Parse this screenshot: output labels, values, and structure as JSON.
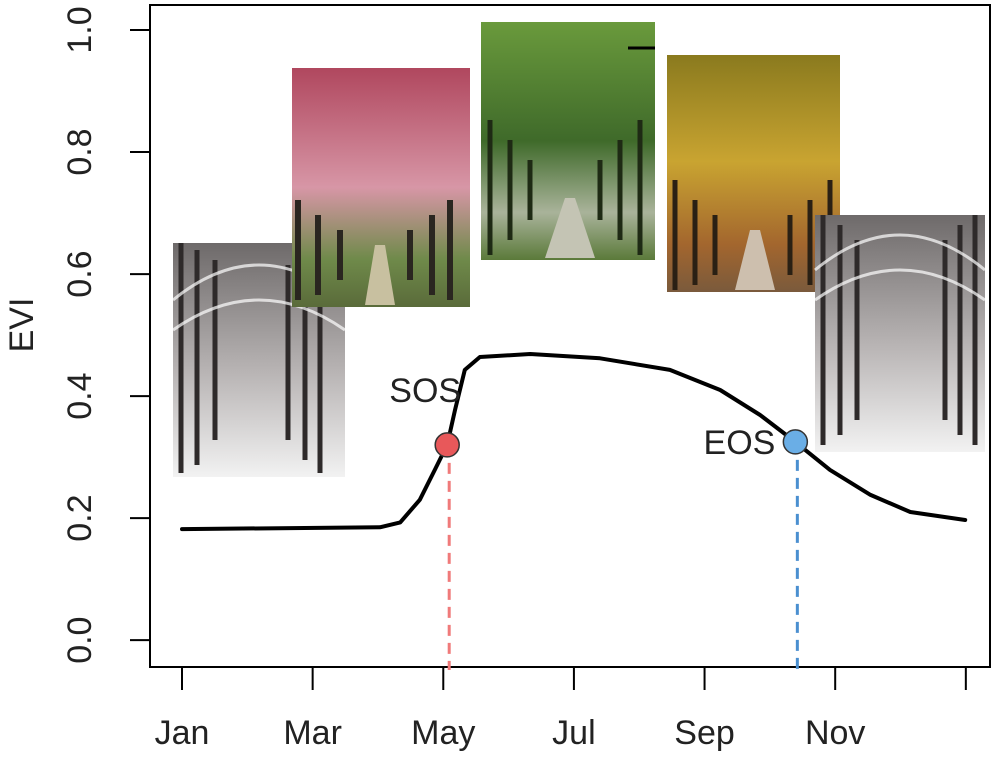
{
  "chart_data": {
    "type": "line",
    "ylabel": "EVI",
    "x": [
      1,
      4.03,
      4.34,
      4.64,
      4.87,
      5.06,
      5.18,
      5.33,
      5.56,
      6.33,
      7.4,
      8.47,
      9.24,
      9.85,
      10.39,
      10.92,
      11.54,
      12.15,
      12.99
    ],
    "values": [
      0.182,
      0.185,
      0.193,
      0.23,
      0.279,
      0.32,
      0.377,
      0.443,
      0.464,
      0.469,
      0.462,
      0.443,
      0.41,
      0.369,
      0.325,
      0.279,
      0.238,
      0.21,
      0.197
    ],
    "color": "#000000",
    "xlim": [
      0.51,
      13.37
    ],
    "ylim": [
      -0.044,
      1.041
    ],
    "xticks": [
      {
        "value": 1,
        "label": "Jan"
      },
      {
        "value": 3,
        "label": "Mar"
      },
      {
        "value": 5,
        "label": "May"
      },
      {
        "value": 7,
        "label": "Jul"
      },
      {
        "value": 9,
        "label": "Sep"
      },
      {
        "value": 11,
        "label": "Nov"
      },
      {
        "value": 13,
        "label": null
      }
    ],
    "yticks": [
      {
        "value": 0,
        "label": "0.0"
      },
      0.2,
      0.4,
      0.6,
      0.8,
      {
        "value": 1,
        "label": "1.0"
      }
    ],
    "markers": [
      {
        "label": "SOS",
        "x": 5.06,
        "y": 0.32,
        "color": "#e8585a",
        "line_color": "#f07a7a"
      },
      {
        "label": "EOS",
        "x": 10.39,
        "y": 0.325,
        "color": "#6aaee6",
        "line_color": "#4a8fd0"
      }
    ]
  }
}
